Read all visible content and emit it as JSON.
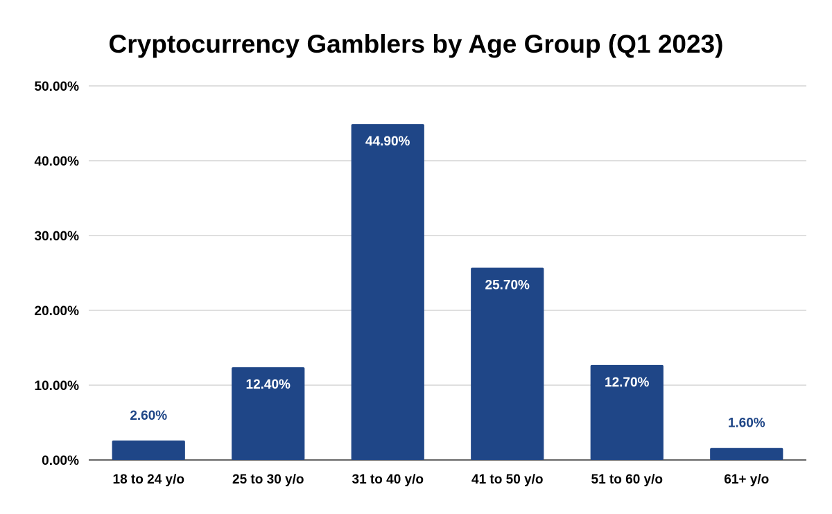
{
  "chart_data": {
    "type": "bar",
    "title": "Cryptocurrency Gamblers by Age Group (Q1 2023)",
    "xlabel": "",
    "ylabel": "",
    "categories": [
      "18 to 24 y/o",
      "25 to 30 y/o",
      "31 to 40 y/o",
      "41 to 50 y/o",
      "51 to 60 y/o",
      "61+ y/o"
    ],
    "values": [
      2.6,
      12.4,
      44.9,
      25.7,
      12.7,
      1.6
    ],
    "data_labels": [
      "2.60%",
      "12.40%",
      "44.90%",
      "25.70%",
      "12.70%",
      "1.60%"
    ],
    "ylim": [
      0,
      50
    ],
    "y_ticks": [
      0,
      10,
      20,
      30,
      40,
      50
    ],
    "y_tick_labels": [
      "0.00%",
      "10.00%",
      "20.00%",
      "30.00%",
      "40.00%",
      "50.00%"
    ],
    "grid": true,
    "legend": "none",
    "colors": {
      "bar": "#1f4687",
      "label_inside": "#ffffff",
      "label_outside": "#1f4687",
      "grid": "#cccccc",
      "axis": "#333333"
    }
  }
}
